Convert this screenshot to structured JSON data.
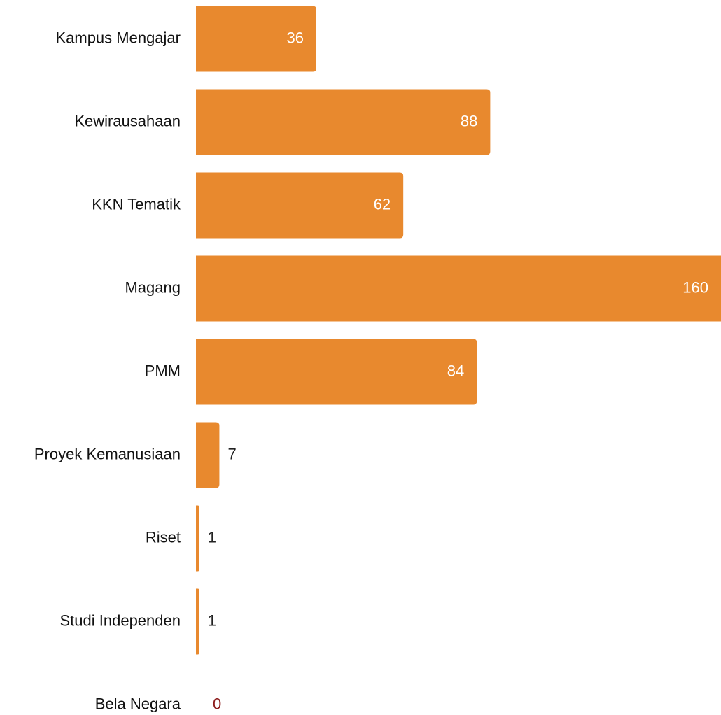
{
  "chart_data": {
    "type": "barh",
    "categories": [
      "Kampus Mengajar",
      "Kewirausahaan",
      "KKN Tematik",
      "Magang",
      "PMM",
      "Proyek Kemanusiaan",
      "Riset",
      "Studi Independen",
      "Bela Negara"
    ],
    "values": [
      36,
      88,
      62,
      160,
      84,
      7,
      1,
      1,
      0
    ],
    "color": "#e8892e",
    "xlim": [
      0,
      157
    ]
  }
}
